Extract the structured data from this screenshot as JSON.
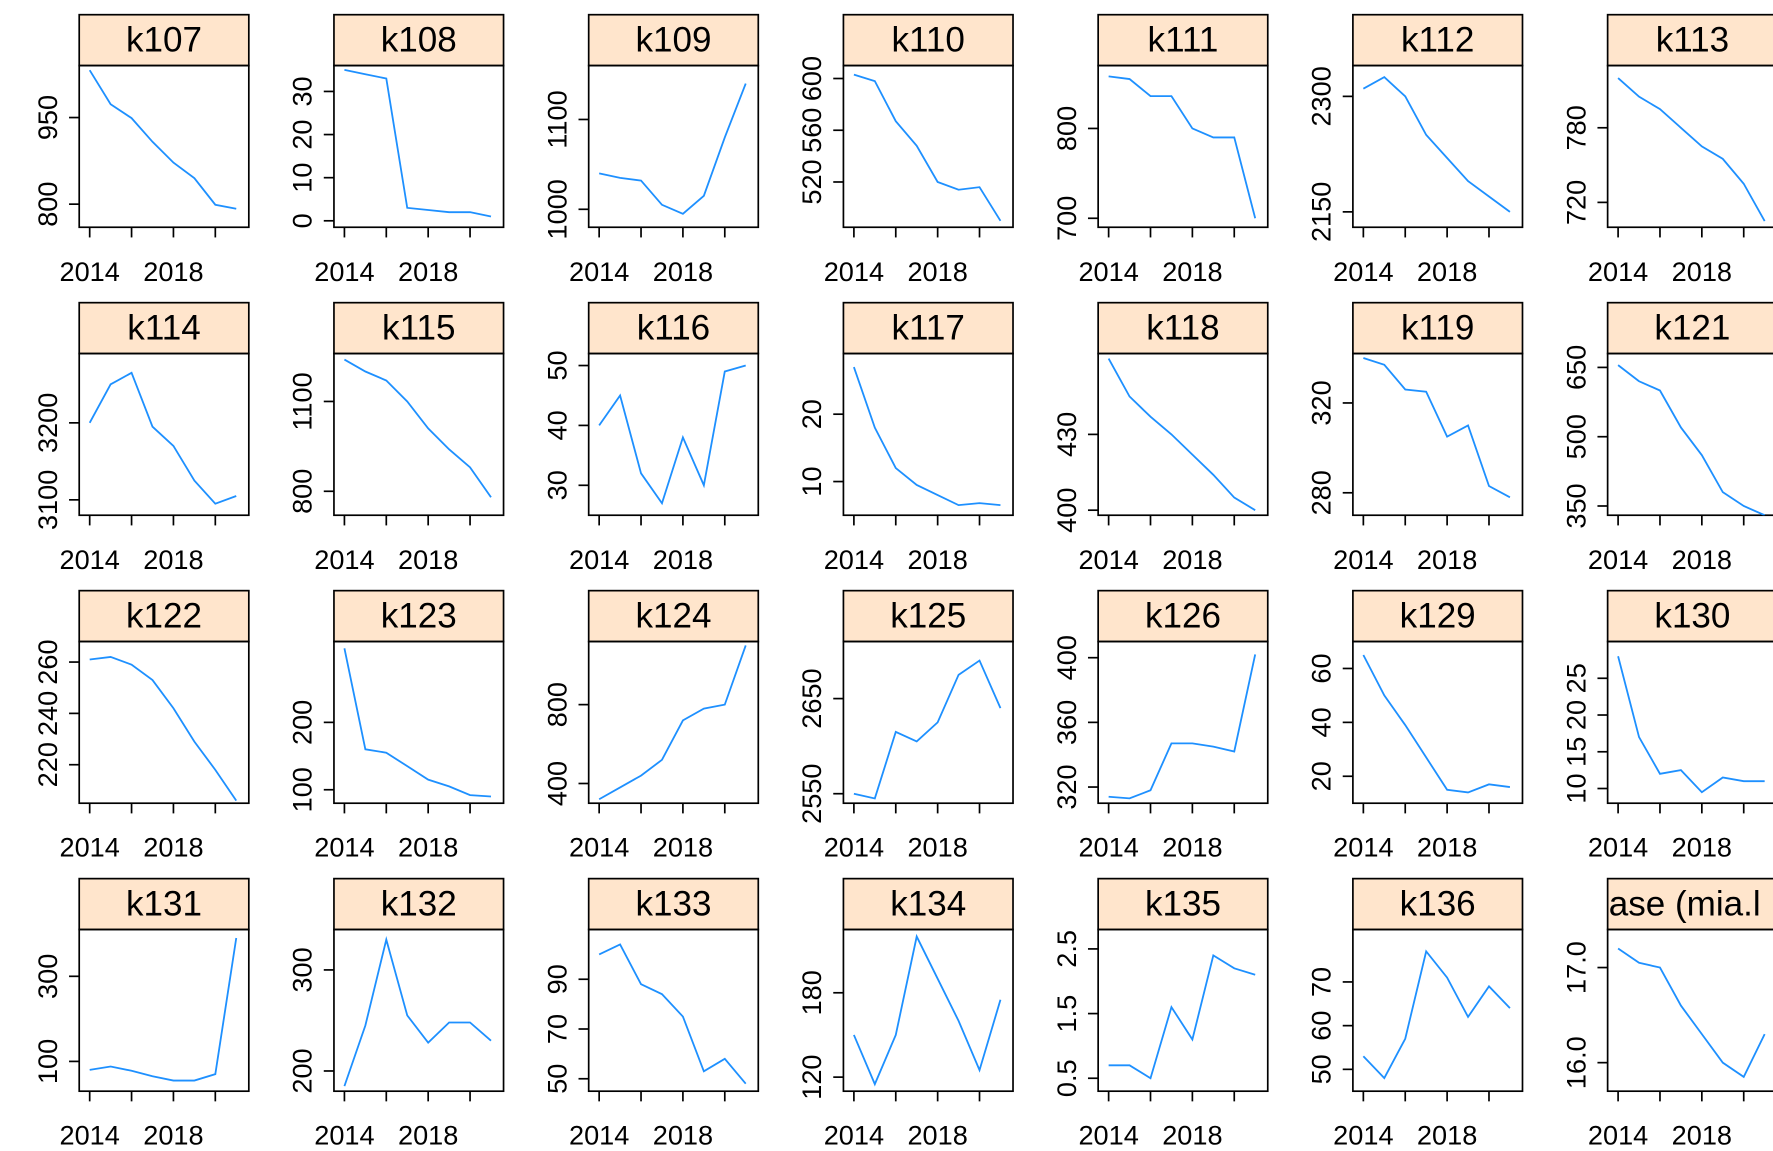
{
  "chart_data": [
    {
      "type": "line",
      "title": "k107",
      "x": [
        2014,
        2015,
        2016,
        2017,
        2018,
        2019,
        2020,
        2021
      ],
      "values": [
        1032,
        973,
        949,
        908,
        872,
        845,
        799,
        792
      ],
      "ylim": [
        760,
        1040
      ],
      "yticks": [
        800,
        950
      ],
      "xlim": [
        2013.5,
        2021.6
      ],
      "xticks": [
        2014,
        2016,
        2018,
        2020
      ],
      "color": "#1e90ff"
    },
    {
      "type": "line",
      "title": "k108",
      "x": [
        2014,
        2015,
        2016,
        2017,
        2018,
        2019,
        2020,
        2021
      ],
      "values": [
        35,
        34,
        33,
        3,
        2.5,
        2,
        2,
        1
      ],
      "ylim": [
        -1.5,
        36
      ],
      "yticks": [
        0,
        10,
        20,
        30
      ],
      "xlim": [
        2013.5,
        2021.6
      ],
      "xticks": [
        2014,
        2016,
        2018,
        2020
      ],
      "color": "#1e90ff"
    },
    {
      "type": "line",
      "title": "k109",
      "x": [
        2014,
        2015,
        2016,
        2017,
        2018,
        2019,
        2020,
        2021
      ],
      "values": [
        1040,
        1035,
        1032,
        1005,
        995,
        1015,
        1080,
        1140
      ],
      "ylim": [
        980,
        1160
      ],
      "yticks": [
        1000,
        1100
      ],
      "xlim": [
        2013.5,
        2021.6
      ],
      "xticks": [
        2014,
        2016,
        2018,
        2020
      ],
      "color": "#1e90ff"
    },
    {
      "type": "line",
      "title": "k110",
      "x": [
        2014,
        2015,
        2016,
        2017,
        2018,
        2019,
        2020,
        2021
      ],
      "values": [
        603,
        598,
        567,
        548,
        520,
        514,
        516,
        490
      ],
      "ylim": [
        485,
        610
      ],
      "yticks": [
        520,
        560,
        600
      ],
      "xlim": [
        2013.5,
        2021.6
      ],
      "xticks": [
        2014,
        2016,
        2018,
        2020
      ],
      "color": "#1e90ff"
    },
    {
      "type": "line",
      "title": "k111",
      "x": [
        2014,
        2015,
        2016,
        2017,
        2018,
        2019,
        2020,
        2021
      ],
      "values": [
        858,
        855,
        836,
        836,
        800,
        790,
        790,
        700
      ],
      "ylim": [
        690,
        870
      ],
      "yticks": [
        700,
        800
      ],
      "xlim": [
        2013.5,
        2021.6
      ],
      "xticks": [
        2014,
        2016,
        2018,
        2020
      ],
      "color": "#1e90ff"
    },
    {
      "type": "line",
      "title": "k112",
      "x": [
        2014,
        2015,
        2016,
        2017,
        2018,
        2019,
        2020,
        2021
      ],
      "values": [
        2310,
        2325,
        2300,
        2250,
        2220,
        2190,
        2170,
        2150
      ],
      "ylim": [
        2130,
        2340
      ],
      "yticks": [
        2150,
        2300
      ],
      "xlim": [
        2013.5,
        2021.6
      ],
      "xticks": [
        2014,
        2016,
        2018,
        2020
      ],
      "color": "#1e90ff"
    },
    {
      "type": "line",
      "title": "k113",
      "x": [
        2014,
        2015,
        2016,
        2017,
        2018,
        2019,
        2020,
        2021
      ],
      "values": [
        820,
        805,
        795,
        780,
        765,
        755,
        735,
        705
      ],
      "ylim": [
        700,
        830
      ],
      "yticks": [
        720,
        780
      ],
      "xlim": [
        2013.5,
        2021.6
      ],
      "xticks": [
        2014,
        2016,
        2018,
        2020
      ],
      "color": "#1e90ff"
    },
    {
      "type": "line",
      "title": "k114",
      "x": [
        2014,
        2015,
        2016,
        2017,
        2018,
        2019,
        2020,
        2021
      ],
      "values": [
        3200,
        3250,
        3265,
        3195,
        3170,
        3125,
        3095,
        3105
      ],
      "ylim": [
        3080,
        3290
      ],
      "yticks": [
        3100,
        3200
      ],
      "xlim": [
        2013.5,
        2021.6
      ],
      "xticks": [
        2014,
        2016,
        2018,
        2020
      ],
      "color": "#1e90ff"
    },
    {
      "type": "line",
      "title": "k115",
      "x": [
        2014,
        2015,
        2016,
        2017,
        2018,
        2019,
        2020,
        2021
      ],
      "values": [
        1240,
        1200,
        1170,
        1100,
        1010,
        940,
        880,
        780
      ],
      "ylim": [
        720,
        1260
      ],
      "yticks": [
        800,
        1100
      ],
      "xlim": [
        2013.5,
        2021.6
      ],
      "xticks": [
        2014,
        2016,
        2018,
        2020
      ],
      "color": "#1e90ff"
    },
    {
      "type": "line",
      "title": "k116",
      "x": [
        2014,
        2015,
        2016,
        2017,
        2018,
        2019,
        2020,
        2021
      ],
      "values": [
        40,
        45,
        32,
        27,
        38,
        30,
        49,
        50
      ],
      "ylim": [
        25,
        52
      ],
      "yticks": [
        30,
        40,
        50
      ],
      "xlim": [
        2013.5,
        2021.6
      ],
      "xticks": [
        2014,
        2016,
        2018,
        2020
      ],
      "color": "#1e90ff"
    },
    {
      "type": "line",
      "title": "k117",
      "x": [
        2014,
        2015,
        2016,
        2017,
        2018,
        2019,
        2020,
        2021
      ],
      "values": [
        27,
        18,
        12,
        9.5,
        8,
        6.5,
        6.8,
        6.5
      ],
      "ylim": [
        5,
        29
      ],
      "yticks": [
        10,
        20
      ],
      "xlim": [
        2013.5,
        2021.6
      ],
      "xticks": [
        2014,
        2016,
        2018,
        2020
      ],
      "color": "#1e90ff"
    },
    {
      "type": "line",
      "title": "k118",
      "x": [
        2014,
        2015,
        2016,
        2017,
        2018,
        2019,
        2020,
        2021
      ],
      "values": [
        460,
        445,
        437,
        430,
        422,
        414,
        405,
        400
      ],
      "ylim": [
        398,
        462
      ],
      "yticks": [
        400,
        430
      ],
      "xlim": [
        2013.5,
        2021.6
      ],
      "xticks": [
        2014,
        2016,
        2018,
        2020
      ],
      "color": "#1e90ff"
    },
    {
      "type": "line",
      "title": "k119",
      "x": [
        2014,
        2015,
        2016,
        2017,
        2018,
        2019,
        2020,
        2021
      ],
      "values": [
        340,
        337,
        326,
        325,
        305,
        310,
        283,
        278
      ],
      "ylim": [
        270,
        342
      ],
      "yticks": [
        280,
        320
      ],
      "xlim": [
        2013.5,
        2021.6
      ],
      "xticks": [
        2014,
        2016,
        2018,
        2020
      ],
      "color": "#1e90ff"
    },
    {
      "type": "line",
      "title": "k121",
      "x": [
        2014,
        2015,
        2016,
        2017,
        2018,
        2019,
        2020,
        2021
      ],
      "values": [
        655,
        620,
        600,
        520,
        460,
        380,
        350,
        330
      ],
      "ylim": [
        330,
        680
      ],
      "yticks": [
        350,
        500,
        650
      ],
      "xlim": [
        2013.5,
        2021.6
      ],
      "xticks": [
        2014,
        2016,
        2018,
        2020
      ],
      "color": "#1e90ff"
    },
    {
      "type": "line",
      "title": "k122",
      "x": [
        2014,
        2015,
        2016,
        2017,
        2018,
        2019,
        2020,
        2021
      ],
      "values": [
        261,
        262,
        259,
        253,
        242,
        229,
        218,
        206
      ],
      "ylim": [
        205,
        268
      ],
      "yticks": [
        220,
        240,
        260
      ],
      "xlim": [
        2013.5,
        2021.6
      ],
      "xticks": [
        2014,
        2016,
        2018,
        2020
      ],
      "color": "#1e90ff"
    },
    {
      "type": "line",
      "title": "k123",
      "x": [
        2014,
        2015,
        2016,
        2017,
        2018,
        2019,
        2020,
        2021
      ],
      "values": [
        310,
        160,
        155,
        135,
        115,
        105,
        92,
        90
      ],
      "ylim": [
        80,
        320
      ],
      "yticks": [
        100,
        200
      ],
      "xlim": [
        2013.5,
        2021.6
      ],
      "xticks": [
        2014,
        2016,
        2018,
        2020
      ],
      "color": "#1e90ff"
    },
    {
      "type": "line",
      "title": "k124",
      "x": [
        2014,
        2015,
        2016,
        2017,
        2018,
        2019,
        2020,
        2021
      ],
      "values": [
        320,
        380,
        440,
        520,
        720,
        780,
        800,
        1100
      ],
      "ylim": [
        300,
        1120
      ],
      "yticks": [
        400,
        800
      ],
      "xlim": [
        2013.5,
        2021.6
      ],
      "xticks": [
        2014,
        2016,
        2018,
        2020
      ],
      "color": "#1e90ff"
    },
    {
      "type": "line",
      "title": "k125",
      "x": [
        2014,
        2015,
        2016,
        2017,
        2018,
        2019,
        2020,
        2021
      ],
      "values": [
        2550,
        2545,
        2615,
        2605,
        2625,
        2675,
        2690,
        2640
      ],
      "ylim": [
        2540,
        2710
      ],
      "yticks": [
        2550,
        2650
      ],
      "xlim": [
        2013.5,
        2021.6
      ],
      "xticks": [
        2014,
        2016,
        2018,
        2020
      ],
      "color": "#1e90ff"
    },
    {
      "type": "line",
      "title": "k126",
      "x": [
        2014,
        2015,
        2016,
        2017,
        2018,
        2019,
        2020,
        2021
      ],
      "values": [
        314,
        313,
        318,
        347,
        347,
        345,
        342,
        402
      ],
      "ylim": [
        310,
        410
      ],
      "yticks": [
        320,
        360,
        400
      ],
      "xlim": [
        2013.5,
        2021.6
      ],
      "xticks": [
        2014,
        2016,
        2018,
        2020
      ],
      "color": "#1e90ff"
    },
    {
      "type": "line",
      "title": "k129",
      "x": [
        2014,
        2015,
        2016,
        2017,
        2018,
        2019,
        2020,
        2021
      ],
      "values": [
        65,
        50,
        39,
        27,
        15,
        14,
        17,
        16
      ],
      "ylim": [
        10,
        70
      ],
      "yticks": [
        20,
        40,
        60
      ],
      "xlim": [
        2013.5,
        2021.6
      ],
      "xticks": [
        2014,
        2016,
        2018,
        2020
      ],
      "color": "#1e90ff"
    },
    {
      "type": "line",
      "title": "k130",
      "x": [
        2014,
        2015,
        2016,
        2017,
        2018,
        2019,
        2020,
        2021
      ],
      "values": [
        28,
        17,
        12,
        12.5,
        9.5,
        11.5,
        11,
        11
      ],
      "ylim": [
        8,
        30
      ],
      "yticks": [
        10,
        15,
        20,
        25
      ],
      "xlim": [
        2013.5,
        2021.6
      ],
      "xticks": [
        2014,
        2016,
        2018,
        2020
      ],
      "color": "#1e90ff"
    },
    {
      "type": "line",
      "title": "k131",
      "x": [
        2014,
        2015,
        2016,
        2017,
        2018,
        2019,
        2020,
        2021
      ],
      "values": [
        80,
        88,
        78,
        65,
        55,
        55,
        70,
        390
      ],
      "ylim": [
        30,
        410
      ],
      "yticks": [
        100,
        300
      ],
      "xlim": [
        2013.5,
        2021.6
      ],
      "xticks": [
        2014,
        2016,
        2018,
        2020
      ],
      "color": "#1e90ff"
    },
    {
      "type": "line",
      "title": "k132",
      "x": [
        2014,
        2015,
        2016,
        2017,
        2018,
        2019,
        2020,
        2021
      ],
      "values": [
        185,
        245,
        330,
        255,
        228,
        248,
        248,
        230
      ],
      "ylim": [
        180,
        340
      ],
      "yticks": [
        200,
        300
      ],
      "xlim": [
        2013.5,
        2021.6
      ],
      "xticks": [
        2014,
        2016,
        2018,
        2020
      ],
      "color": "#1e90ff"
    },
    {
      "type": "line",
      "title": "k133",
      "x": [
        2014,
        2015,
        2016,
        2017,
        2018,
        2019,
        2020,
        2021
      ],
      "values": [
        100,
        104,
        88,
        84,
        75,
        53,
        58,
        48
      ],
      "ylim": [
        45,
        110
      ],
      "yticks": [
        50,
        70,
        90
      ],
      "xlim": [
        2013.5,
        2021.6
      ],
      "xticks": [
        2014,
        2016,
        2018,
        2020
      ],
      "color": "#1e90ff"
    },
    {
      "type": "line",
      "title": "k134",
      "x": [
        2014,
        2015,
        2016,
        2017,
        2018,
        2019,
        2020,
        2021
      ],
      "values": [
        150,
        115,
        150,
        220,
        190,
        160,
        125,
        175
      ],
      "ylim": [
        110,
        225
      ],
      "yticks": [
        120,
        180
      ],
      "xlim": [
        2013.5,
        2021.6
      ],
      "xticks": [
        2014,
        2016,
        2018,
        2020
      ],
      "color": "#1e90ff"
    },
    {
      "type": "line",
      "title": "k135",
      "x": [
        2014,
        2015,
        2016,
        2017,
        2018,
        2019,
        2020,
        2021
      ],
      "values": [
        0.7,
        0.7,
        0.5,
        1.6,
        1.1,
        2.4,
        2.2,
        2.1
      ],
      "ylim": [
        0.3,
        2.8
      ],
      "yticks": [
        0.5,
        1.5,
        2.5
      ],
      "xlim": [
        2013.5,
        2021.6
      ],
      "xticks": [
        2014,
        2016,
        2018,
        2020
      ],
      "color": "#1e90ff"
    },
    {
      "type": "line",
      "title": "k136",
      "x": [
        2014,
        2015,
        2016,
        2017,
        2018,
        2019,
        2020,
        2021
      ],
      "values": [
        53,
        48,
        57,
        77,
        71,
        62,
        69,
        64
      ],
      "ylim": [
        45,
        82
      ],
      "yticks": [
        50,
        60,
        70
      ],
      "xlim": [
        2013.5,
        2021.6
      ],
      "xticks": [
        2014,
        2016,
        2018,
        2020
      ],
      "color": "#1e90ff"
    },
    {
      "type": "line",
      "title": "ase (mia.l",
      "x": [
        2014,
        2015,
        2016,
        2017,
        2018,
        2019,
        2020,
        2021
      ],
      "values": [
        17.2,
        17.05,
        17.0,
        16.6,
        16.3,
        16.0,
        15.85,
        16.3
      ],
      "ylim": [
        15.7,
        17.4
      ],
      "yticks": [
        {
          "value": 16,
          "label": "16.0"
        },
        {
          "value": 17,
          "label": "17.0"
        }
      ],
      "xlim": [
        2013.5,
        2021.6
      ],
      "xticks": [
        2014,
        2016,
        2018,
        2020
      ],
      "color": "#1e90ff"
    }
  ]
}
